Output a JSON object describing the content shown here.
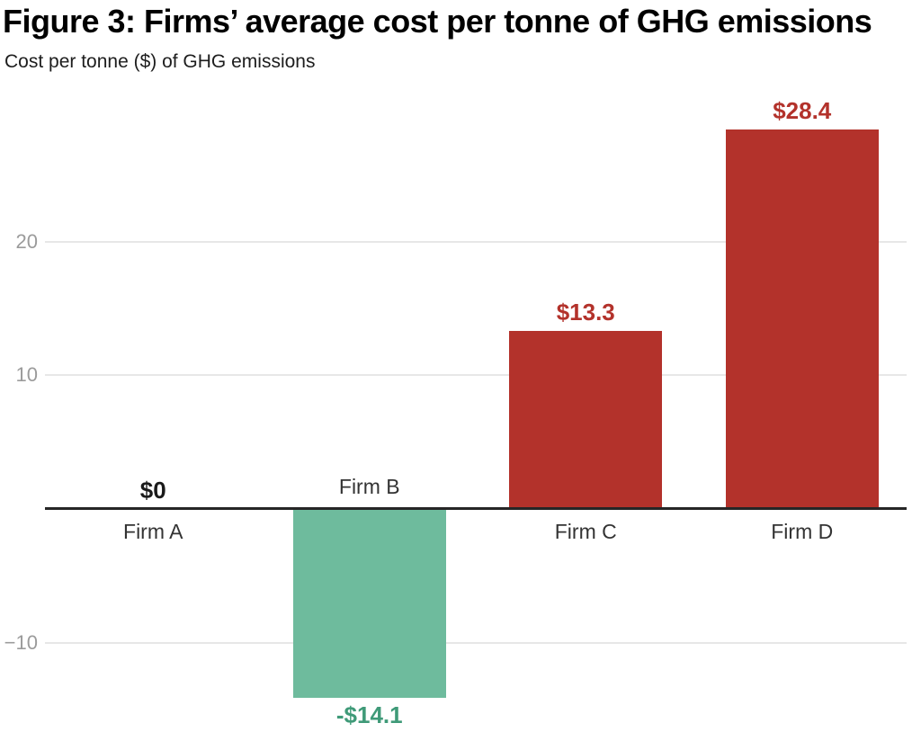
{
  "chart_data": {
    "type": "bar",
    "title": "Figure 3: Firms’ average cost per tonne of GHG emissions",
    "ylabel": "Cost per tonne ($) of GHG emissions",
    "xlabel": "",
    "categories": [
      "Firm A",
      "Firm B",
      "Firm C",
      "Firm D"
    ],
    "values": [
      0,
      -14.1,
      13.3,
      28.4
    ],
    "value_labels": [
      "$0",
      "-$14.1",
      "$13.3",
      "$28.4"
    ],
    "yticks": [
      {
        "value": 20,
        "label": "20"
      },
      {
        "value": 10,
        "label": "10"
      },
      {
        "value": -10,
        "label": "−10"
      }
    ],
    "ylim": [
      -16.7,
      30.7
    ],
    "grid": "horizontal",
    "legend_position": "none",
    "baseline": 0
  },
  "colors": {
    "positive_bar": "#b3322b",
    "negative_bar": "#6ebb9d",
    "positive_value_label": "#b3322b",
    "negative_value_label": "#3f9a78",
    "zero_value_label": "#1a1a1a",
    "category_label": "#333333",
    "tick_label": "#9b9b9b",
    "gridline": "#e7e7e7",
    "axis_line": "#262626",
    "background": "#ffffff"
  }
}
